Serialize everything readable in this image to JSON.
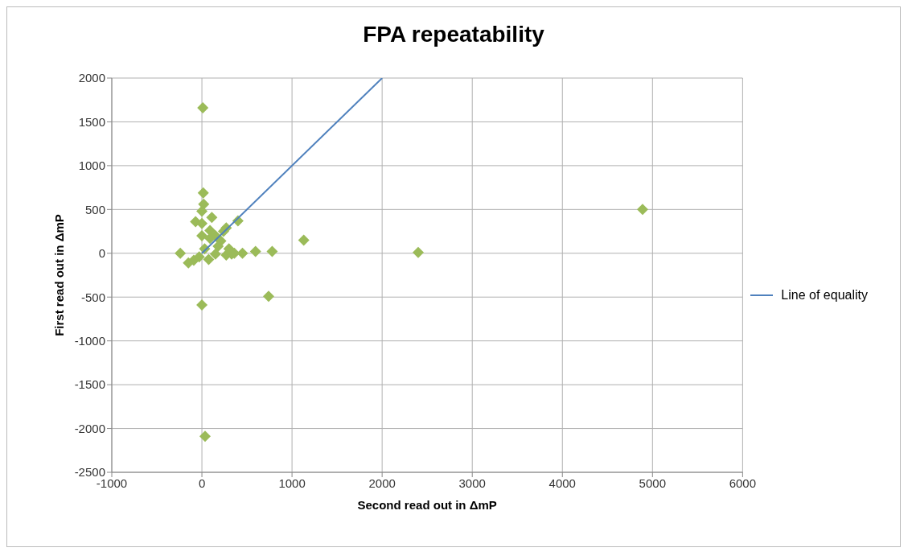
{
  "chart_data": {
    "type": "scatter",
    "title": "FPA repeatability",
    "xlabel": "Second read out in ΔmP",
    "ylabel": "First read out in ΔmP",
    "xlim": [
      -1000,
      6000
    ],
    "xticks": [
      -1000,
      0,
      1000,
      2000,
      3000,
      4000,
      5000,
      6000
    ],
    "ylim": [
      -2500,
      2000
    ],
    "yticks": [
      -2500,
      -2000,
      -1500,
      -1000,
      -500,
      0,
      500,
      1000,
      1500,
      2000
    ],
    "grid": true,
    "legend": "right",
    "series": [
      {
        "color": "#9bbb59",
        "marker": "diamond",
        "x": [
          10,
          15,
          20,
          0,
          110,
          -70,
          400,
          0,
          0,
          90,
          240,
          270,
          150,
          210,
          90,
          -240,
          1130,
          595,
          780,
          450,
          360,
          270,
          330,
          150,
          75,
          -90,
          -150,
          -30,
          30,
          180,
          300,
          0,
          740,
          35,
          2400,
          4890
        ],
        "values": [
          1660,
          690,
          560,
          480,
          410,
          360,
          370,
          340,
          200,
          260,
          250,
          290,
          200,
          140,
          170,
          0,
          150,
          20,
          20,
          0,
          0,
          -20,
          -10,
          -10,
          -70,
          -80,
          -110,
          -40,
          50,
          80,
          50,
          -590,
          -490,
          -2090,
          10,
          500
        ]
      },
      {
        "type": "line",
        "name": "Line of equality",
        "color": "#4f81bd",
        "marker": "none",
        "x": [
          0,
          2000
        ],
        "values": [
          0,
          2000
        ]
      }
    ]
  }
}
